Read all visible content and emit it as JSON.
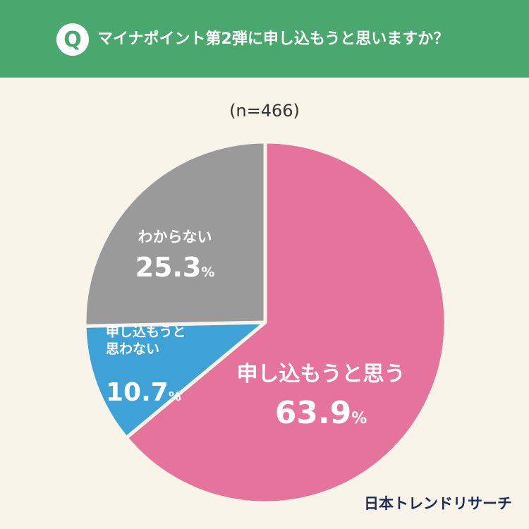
{
  "header": {
    "badge": "Q",
    "question": "マイナポイント第2弾に申し込もうと思いますか？",
    "background": "#4aa76d"
  },
  "sample_label": "(n=466)",
  "brand": "日本トレンドリサーチ",
  "chart_data": {
    "type": "pie",
    "title": "マイナポイント第2弾に申し込もうと思いますか？",
    "subtitle": "(n=466)",
    "unit": "%",
    "slices": [
      {
        "label": "申し込もうと思う",
        "value": 63.9,
        "color": "#e5739b"
      },
      {
        "label": "申し込もうと思わない",
        "value": 10.7,
        "color": "#3ea2d6"
      },
      {
        "label": "わからない",
        "value": 25.3,
        "color": "#9a9a9a"
      }
    ]
  }
}
